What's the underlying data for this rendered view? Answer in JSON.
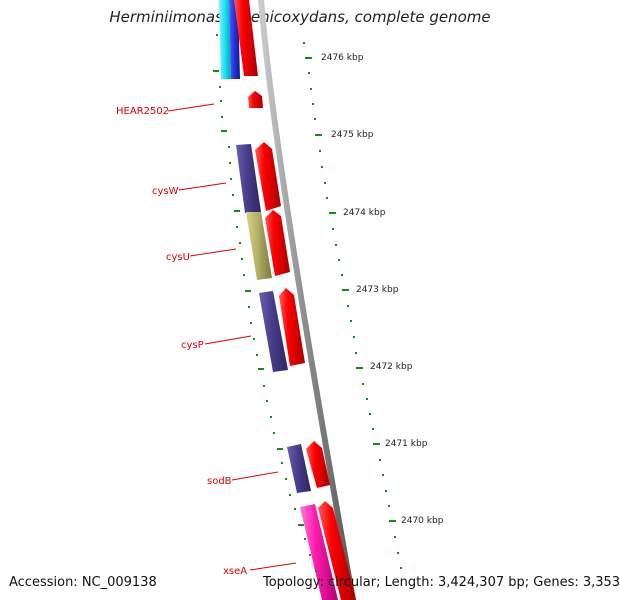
{
  "title": "Herminiimonas arsenicoxydans, complete genome",
  "footer": {
    "accession": "Accession: NC_009138",
    "summary": "Topology: circular; Length: 3,424,307 bp; Genes: 3,353"
  },
  "scale_labels": [
    "2476 kbp",
    "2475 kbp",
    "2474 kbp",
    "2473 kbp",
    "2472 kbp",
    "2471 kbp",
    "2470 kbp"
  ],
  "gene_labels": [
    "HEAR2502",
    "cysW",
    "cysU",
    "cysP",
    "sodB",
    "xseA"
  ],
  "colors": {
    "forward_strand": "#ff0000",
    "cog_purple": "#4b3f8e",
    "cog_olive": "#b8b46a",
    "cog_cyan": "#19e3f0",
    "cog_blue": "#2430d8",
    "cog_magenta": "#ff1cae",
    "backbone": "#8a8a8a",
    "tick_green": "#1a8a1a",
    "label_red": "#dd0000"
  }
}
